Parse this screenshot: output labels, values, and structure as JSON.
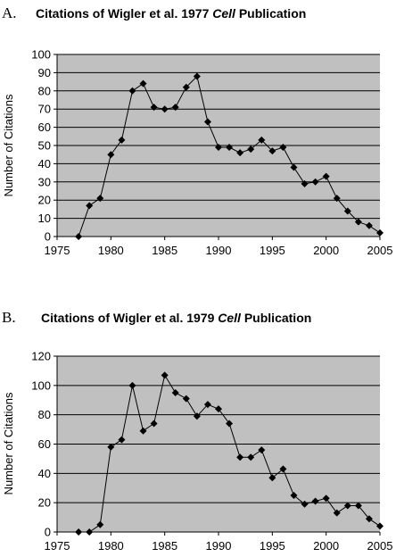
{
  "chart_data": [
    {
      "type": "line",
      "panel_label": "A.",
      "title_parts": [
        "Citations of Wigler et al. 1977 ",
        "Cell",
        " Publication"
      ],
      "ylabel": "Number of Citations",
      "xlabel": "",
      "xlim": [
        1975,
        2005
      ],
      "ylim": [
        0,
        100
      ],
      "xticks": [
        "1975",
        "1980",
        "1985",
        "1990",
        "1995",
        "2000",
        "2005"
      ],
      "yticks": [
        "0",
        "10",
        "20",
        "30",
        "40",
        "50",
        "60",
        "70",
        "80",
        "90",
        "100"
      ],
      "grid": "horizontal",
      "series": [
        {
          "x": [
            1977,
            1978,
            1979,
            1980,
            1981,
            1982,
            1983,
            1984,
            1985,
            1986,
            1987,
            1988,
            1989,
            1990,
            1991,
            1992,
            1993,
            1994,
            1995,
            1996,
            1997,
            1998,
            1999,
            2000,
            2001,
            2002,
            2003,
            2004,
            2005
          ],
          "y": [
            0,
            17,
            21,
            45,
            53,
            80,
            84,
            71,
            70,
            71,
            82,
            88,
            63,
            49,
            49,
            46,
            48,
            53,
            47,
            49,
            38,
            29,
            30,
            33,
            21,
            14,
            8,
            6,
            2
          ]
        }
      ]
    },
    {
      "type": "line",
      "panel_label": "B.",
      "title_parts": [
        "Citations of Wigler et al. 1979 ",
        "Cell",
        " Publication"
      ],
      "ylabel": "Number of Citations",
      "xlabel": "",
      "xlim": [
        1975,
        2005
      ],
      "ylim": [
        0,
        120
      ],
      "xticks": [
        "1975",
        "1980",
        "1985",
        "1990",
        "1995",
        "2000",
        "2005"
      ],
      "yticks": [
        "0",
        "20",
        "40",
        "60",
        "80",
        "100",
        "120"
      ],
      "grid": "horizontal",
      "series": [
        {
          "x": [
            1977,
            1978,
            1979,
            1980,
            1981,
            1982,
            1983,
            1984,
            1985,
            1986,
            1987,
            1988,
            1989,
            1990,
            1991,
            1992,
            1993,
            1994,
            1995,
            1996,
            1997,
            1998,
            1999,
            2000,
            2001,
            2002,
            2003,
            2004,
            2005
          ],
          "y": [
            0,
            0,
            5,
            58,
            63,
            100,
            69,
            74,
            107,
            95,
            91,
            79,
            87,
            84,
            74,
            51,
            51,
            56,
            37,
            43,
            25,
            19,
            21,
            23,
            13,
            18,
            18,
            9,
            4
          ]
        }
      ]
    }
  ],
  "colors": {
    "plot_background": "#c0c0c0",
    "line": "#000000",
    "marker": "#000000",
    "gridline": "#000000"
  }
}
